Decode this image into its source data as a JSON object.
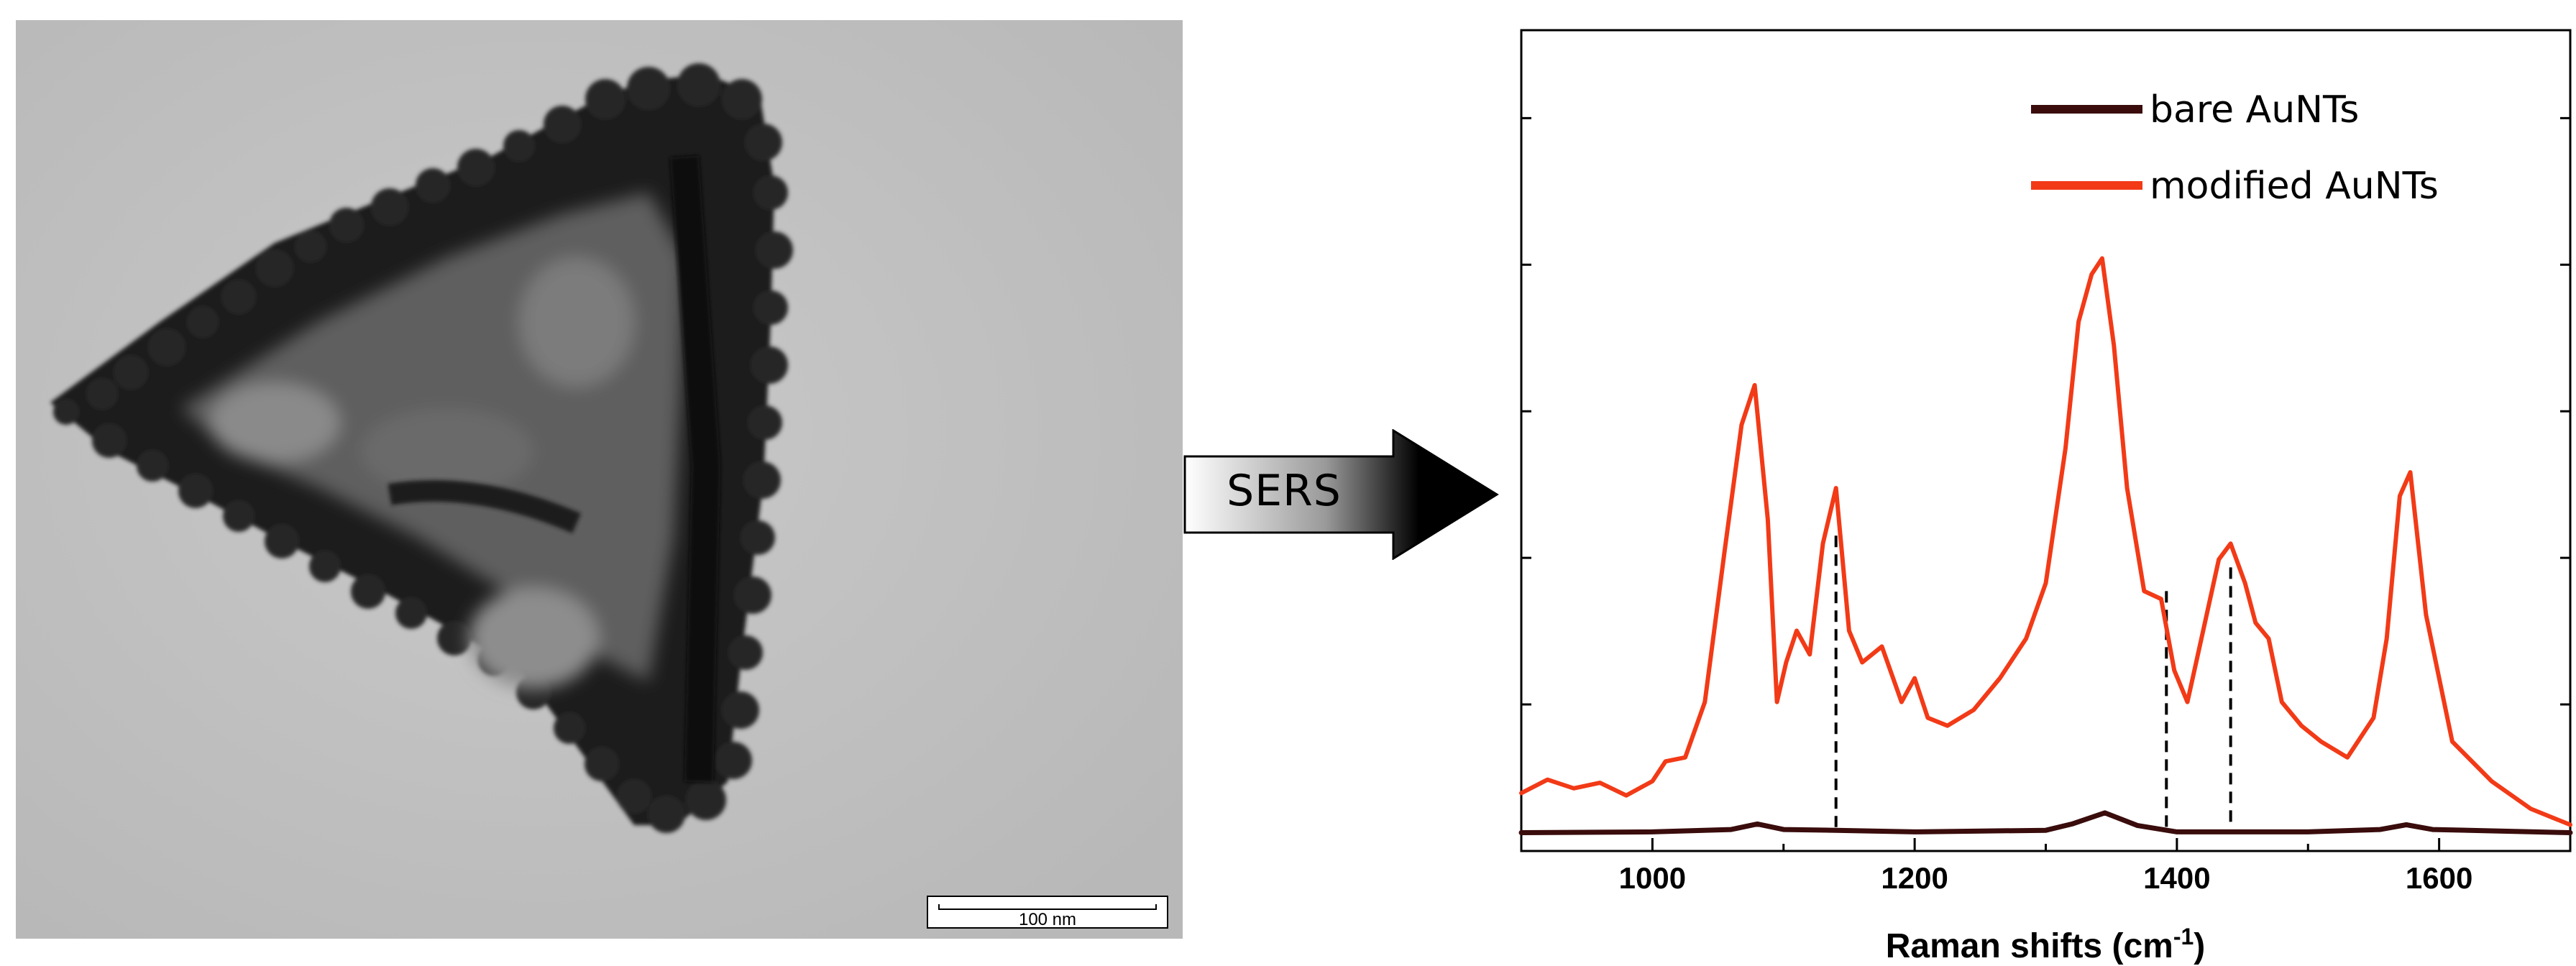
{
  "tem_image": {
    "scale_bar_label": "100 nm"
  },
  "arrow": {
    "label": "SERS"
  },
  "chart_data": {
    "type": "line",
    "xlabel": "Raman shifts (cm",
    "xlabel_superscript": "-1",
    "xlabel_suffix": ")",
    "ylabel": "",
    "xlim": [
      900,
      1700
    ],
    "ylim": [
      0,
      100
    ],
    "xticks": [
      1000,
      1200,
      1400,
      1600
    ],
    "y_tick_labels_shown": false,
    "grid": false,
    "legend_position": "top-right",
    "series": [
      {
        "name": "bare AuNTs",
        "color": "#3a0c0c",
        "x": [
          900,
          1000,
          1060,
          1080,
          1100,
          1140,
          1200,
          1300,
          1320,
          1345,
          1370,
          1400,
          1500,
          1555,
          1575,
          1595,
          1700
        ],
        "y": [
          0.5,
          0.6,
          0.9,
          1.6,
          0.9,
          0.8,
          0.6,
          0.8,
          1.6,
          3.0,
          1.4,
          0.6,
          0.6,
          0.9,
          1.5,
          0.9,
          0.5
        ]
      },
      {
        "name": "modified AuNTs",
        "color": "#f23a17",
        "x": [
          900,
          920,
          940,
          960,
          980,
          1000,
          1010,
          1025,
          1040,
          1055,
          1068,
          1078,
          1088,
          1095,
          1102,
          1110,
          1120,
          1130,
          1140,
          1150,
          1160,
          1175,
          1190,
          1200,
          1210,
          1225,
          1245,
          1265,
          1285,
          1300,
          1315,
          1325,
          1335,
          1343,
          1352,
          1362,
          1375,
          1388,
          1398,
          1408,
          1420,
          1432,
          1441,
          1452,
          1460,
          1470,
          1480,
          1495,
          1510,
          1530,
          1550,
          1560,
          1570,
          1578,
          1590,
          1610,
          1640,
          1670,
          1700
        ],
        "y": [
          5.5,
          7.2,
          6.1,
          6.8,
          5.2,
          7.0,
          9.5,
          10.0,
          17.0,
          36.0,
          52.0,
          57.0,
          40.0,
          17.0,
          22.0,
          26.0,
          23.0,
          37.0,
          44.0,
          26.0,
          22.0,
          24.0,
          17.0,
          20.0,
          15.0,
          14.0,
          16.0,
          20.0,
          25.0,
          32.0,
          49.0,
          65.0,
          71.0,
          73.0,
          62.0,
          44.0,
          31.0,
          30.0,
          21.0,
          17.0,
          26.0,
          35.0,
          37.0,
          32.0,
          27.0,
          25.0,
          17.0,
          14.0,
          12.0,
          10.0,
          15.0,
          25.0,
          43.0,
          46.0,
          28.0,
          12.0,
          7.0,
          3.5,
          1.5
        ]
      }
    ],
    "dashed_markers": [
      {
        "x": 1140,
        "y_top": 38
      },
      {
        "x": 1392,
        "y_top": 31
      },
      {
        "x": 1441,
        "y_top": 34
      }
    ]
  }
}
